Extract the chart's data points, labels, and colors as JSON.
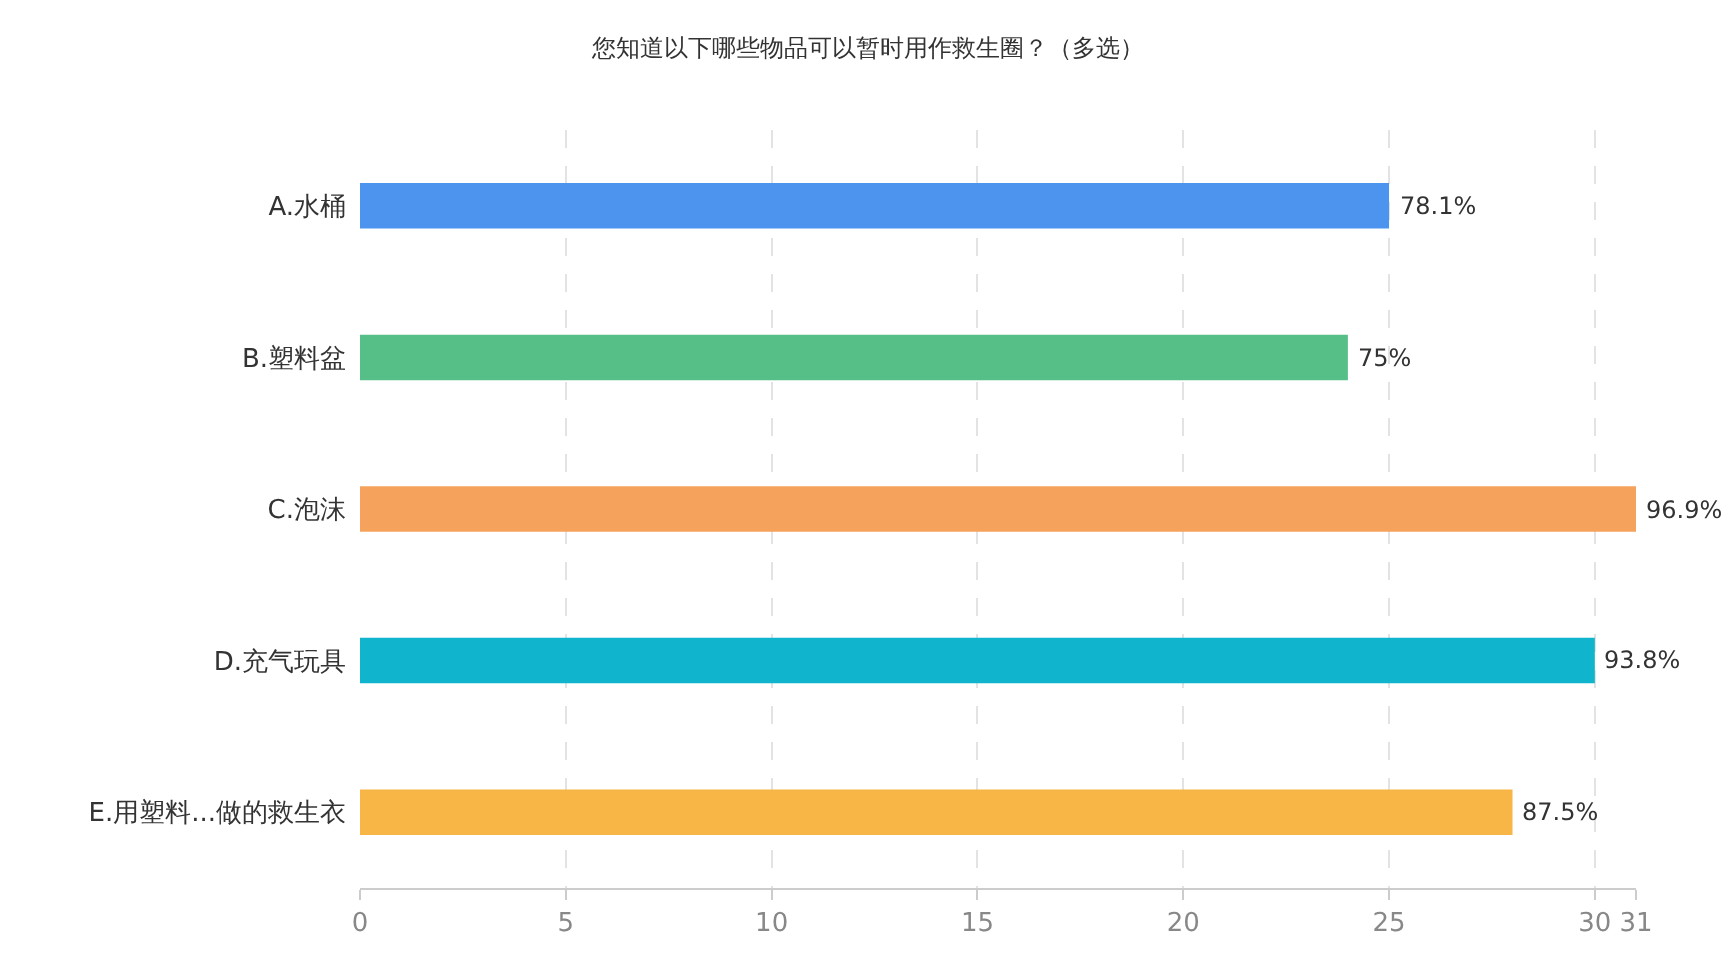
{
  "chart_data": {
    "type": "bar",
    "orientation": "horizontal",
    "title": "您知道以下哪些物品可以暂时用作救生圈？（多选）",
    "categories": [
      "A.水桶",
      "B.塑料盆",
      "C.泡沫",
      "D.充气玩具",
      "E.用塑料...做的救生衣"
    ],
    "values": [
      25,
      24,
      31,
      30,
      28
    ],
    "colors": [
      "#4d94ee",
      "#56bf88",
      "#f5a25d",
      "#11b4cd",
      "#f7b646"
    ],
    "annotations": [
      {
        "text": "78.1%",
        "x": 25,
        "y": "A.水桶"
      },
      {
        "text": "75%",
        "x": 24,
        "y": "B.塑料盆"
      },
      {
        "text": "96.9%",
        "x": 31,
        "y": "C.泡沫"
      },
      {
        "text": "93.8%",
        "x": 30,
        "y": "D.充气玩具"
      },
      {
        "text": "87.5%",
        "x": 28,
        "y": "E.用塑料...做的救生衣"
      }
    ],
    "xlim": [
      0,
      31
    ],
    "xticks": [
      0,
      5,
      10,
      15,
      20,
      25,
      30,
      31
    ],
    "grid": "x"
  }
}
